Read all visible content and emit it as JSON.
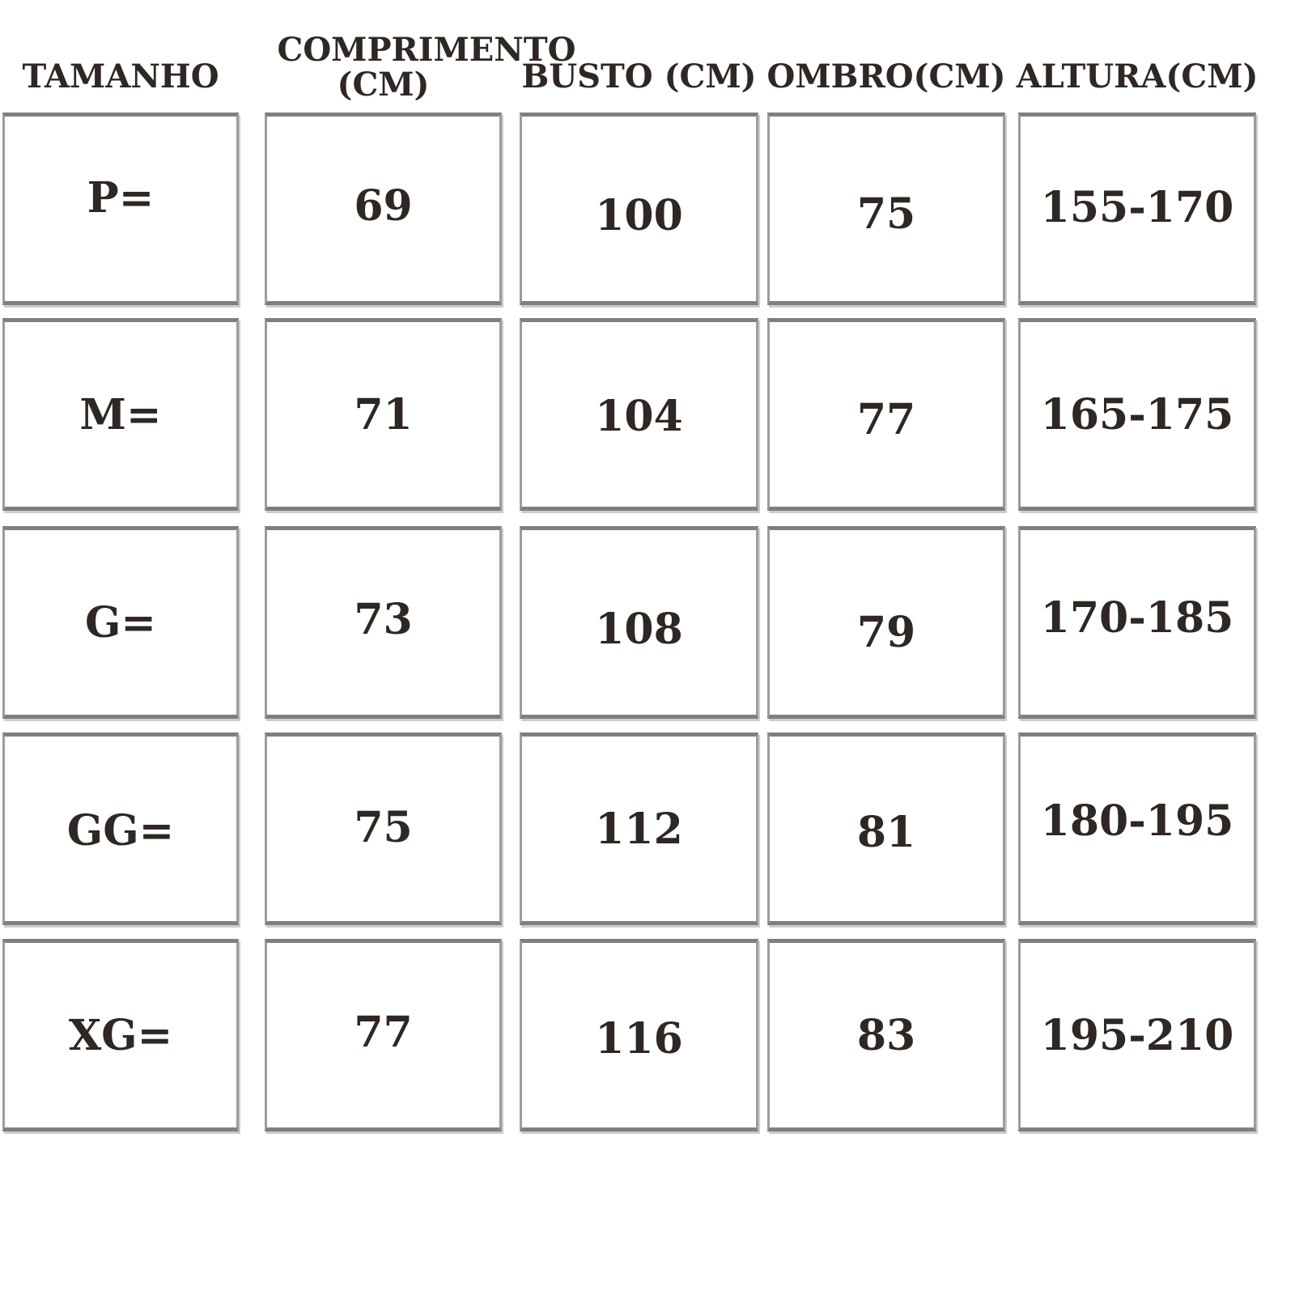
{
  "table": {
    "headers": [
      "TAMANHO",
      "COMPRIMENTO (CM)",
      "BUSTO (CM)",
      "OMBRO(CM)",
      "ALTURA(CM)"
    ],
    "rows": [
      {
        "label": "P=",
        "values": [
          "69",
          "100",
          "75",
          "155-170"
        ]
      },
      {
        "label": "M=",
        "values": [
          "71",
          "104",
          "77",
          "165-175"
        ]
      },
      {
        "label": "G=",
        "values": [
          "73",
          "108",
          "79",
          "170-185"
        ]
      },
      {
        "label": "GG=",
        "values": [
          "75",
          "112",
          "81",
          "180-195"
        ]
      },
      {
        "label": "XG=",
        "values": [
          "77",
          "116",
          "83",
          "195-210"
        ]
      }
    ]
  },
  "colors": {
    "background": "#ffffff",
    "text": "#2e2723",
    "cell_border": "#8a8a8a"
  },
  "chart_data": {
    "type": "table",
    "columns": [
      "TAMANHO",
      "COMPRIMENTO (CM)",
      "BUSTO (CM)",
      "OMBRO(CM)",
      "ALTURA(CM)"
    ],
    "rows": [
      [
        "P=",
        69,
        100,
        75,
        "155-170"
      ],
      [
        "M=",
        71,
        104,
        77,
        "165-175"
      ],
      [
        "G=",
        73,
        108,
        79,
        "170-185"
      ],
      [
        "GG=",
        75,
        112,
        81,
        "180-195"
      ],
      [
        "XG=",
        77,
        116,
        83,
        "195-210"
      ]
    ],
    "layout": "each cell rendered as separate bordered white box, grid 5 columns x 5 data rows, header row of plain text above"
  }
}
